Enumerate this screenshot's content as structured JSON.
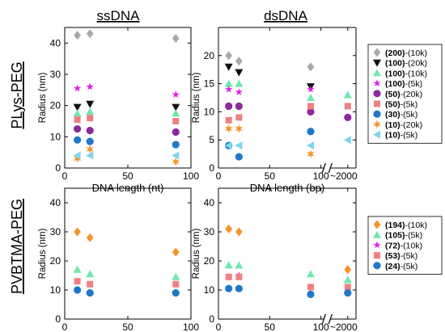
{
  "labels": {
    "col_ss": "ssDNA",
    "col_ds": "dsDNA",
    "row_top": "PLys-PEG",
    "row_bottom": "PVBTMA-PEG",
    "radius_label": "Radius (nm)",
    "xlabel_nt": "DNA length (nt)",
    "xlabel_bp": "DNA length (bp)",
    "break_tick": "2000"
  },
  "legend_top": [
    {
      "bold": "(200)",
      "rest": "-(10k)",
      "color": "#a8a8a8",
      "marker": "diamond"
    },
    {
      "bold": "(100)",
      "rest": "-(20k)",
      "color": "#111111",
      "marker": "triangle-down"
    },
    {
      "bold": "(100)",
      "rest": "-(10k)",
      "color": "#6ee8ae",
      "marker": "triangle-up"
    },
    {
      "bold": "(100)",
      "rest": "-(5k)",
      "color": "#e61ee6",
      "marker": "star"
    },
    {
      "bold": "(50)",
      "rest": "-(20k)",
      "color": "#8b2a9c",
      "marker": "circle"
    },
    {
      "bold": "(50)",
      "rest": "-(5k)",
      "color": "#f08080",
      "marker": "square"
    },
    {
      "bold": "(30)",
      "rest": "-(5k)",
      "color": "#1f78c8",
      "marker": "circle"
    },
    {
      "bold": "(10)",
      "rest": "-(20k)",
      "color": "#f5932a",
      "marker": "asterisk"
    },
    {
      "bold": "(10)",
      "rest": "-(5k)",
      "color": "#7fd4f0",
      "marker": "triangle-left"
    }
  ],
  "legend_bottom": [
    {
      "bold": "(194)",
      "rest": "-(10k)",
      "color": "#f5932a",
      "marker": "diamond"
    },
    {
      "bold": "(105)",
      "rest": "-(5k)",
      "color": "#6ee8ae",
      "marker": "triangle-up"
    },
    {
      "bold": "(72)",
      "rest": "-(10k)",
      "color": "#e61ee6",
      "marker": "star"
    },
    {
      "bold": "(53)",
      "rest": "-(5k)",
      "color": "#f08080",
      "marker": "square"
    },
    {
      "bold": "(24)",
      "rest": "-(5k)",
      "color": "#1f78c8",
      "marker": "circle"
    }
  ],
  "chart_data": [
    {
      "type": "scatter",
      "panel": "top-left",
      "title": "ssDNA",
      "xlabel": "DNA length (nt)",
      "ylabel": "Radius (nm)",
      "xlim": [
        0,
        100
      ],
      "ylim": [
        0,
        45
      ],
      "xticks": [
        0,
        50,
        100
      ],
      "yticks": [
        0,
        10,
        20,
        30,
        40
      ],
      "series": [
        {
          "name": "(200)-(10k)",
          "x": [
            10,
            20,
            88
          ],
          "y": [
            42.5,
            43,
            41.5
          ]
        },
        {
          "name": "(100)-(20k)",
          "x": [
            10,
            20,
            88
          ],
          "y": [
            19.5,
            20.5,
            19.5
          ]
        },
        {
          "name": "(100)-(10k)",
          "x": [
            10,
            20,
            88
          ],
          "y": [
            17.5,
            18,
            17.5
          ]
        },
        {
          "name": "(100)-(5k)",
          "x": [
            10,
            20,
            88
          ],
          "y": [
            25.5,
            26,
            23.5
          ]
        },
        {
          "name": "(50)-(20k)",
          "x": [
            10,
            20,
            88
          ],
          "y": [
            12.5,
            12,
            11.5
          ]
        },
        {
          "name": "(50)-(5k)",
          "x": [
            10,
            20,
            88
          ],
          "y": [
            15.5,
            16,
            15
          ]
        },
        {
          "name": "(30)-(5k)",
          "x": [
            10,
            20,
            88
          ],
          "y": [
            9,
            8.5,
            7.5
          ]
        },
        {
          "name": "(10)-(20k)",
          "x": [
            10,
            20,
            88
          ],
          "y": [
            3,
            6,
            2
          ]
        },
        {
          "name": "(10)-(5k)",
          "x": [
            10,
            20,
            88
          ],
          "y": [
            4,
            4,
            4
          ]
        }
      ]
    },
    {
      "type": "scatter",
      "panel": "top-right",
      "title": "dsDNA",
      "xlabel": "DNA length (bp)",
      "ylabel": "Radius (nm)",
      "xlim": [
        0,
        2000
      ],
      "ylim": [
        0,
        25
      ],
      "xticks": [
        0,
        50,
        100,
        2000
      ],
      "yticks": [
        0,
        5,
        10,
        15,
        20
      ],
      "x_axis_break": [
        100,
        2000
      ],
      "series": [
        {
          "name": "(200)-(10k)",
          "x": [
            10,
            20,
            90
          ],
          "y": [
            20,
            19,
            18
          ]
        },
        {
          "name": "(100)-(20k)",
          "x": [
            10,
            20,
            90
          ],
          "y": [
            18,
            17,
            14.5
          ]
        },
        {
          "name": "(100)-(10k)",
          "x": [
            10,
            20,
            90,
            2000
          ],
          "y": [
            15,
            15,
            12.5,
            13
          ]
        },
        {
          "name": "(100)-(5k)",
          "x": [
            10,
            20,
            90
          ],
          "y": [
            14,
            13.5,
            14
          ]
        },
        {
          "name": "(50)-(20k)",
          "x": [
            10,
            20,
            90,
            2000
          ],
          "y": [
            11,
            11,
            10,
            9
          ]
        },
        {
          "name": "(50)-(5k)",
          "x": [
            10,
            20,
            90,
            2000
          ],
          "y": [
            8.5,
            9,
            11,
            11
          ]
        },
        {
          "name": "(30)-(5k)",
          "x": [
            10,
            20,
            90
          ],
          "y": [
            4,
            2,
            6.5
          ]
        },
        {
          "name": "(10)-(20k)",
          "x": [
            10,
            20,
            90
          ],
          "y": [
            7,
            7,
            2.5
          ]
        },
        {
          "name": "(10)-(5k)",
          "x": [
            10,
            20,
            90,
            2000
          ],
          "y": [
            4,
            4,
            4,
            5
          ]
        }
      ]
    },
    {
      "type": "scatter",
      "panel": "bottom-left",
      "xlabel": "DNA length (nt)",
      "ylabel": "Radius (nm)",
      "xlim": [
        0,
        100
      ],
      "ylim": [
        0,
        45
      ],
      "xticks": [
        0,
        50,
        100
      ],
      "yticks": [
        0,
        10,
        20,
        30,
        40
      ],
      "series": [
        {
          "name": "(194)-(10k)",
          "x": [
            10,
            20,
            88
          ],
          "y": [
            30,
            28,
            23
          ]
        },
        {
          "name": "(105)-(5k)",
          "x": [
            10,
            20,
            88
          ],
          "y": [
            17,
            15.5,
            14.5
          ]
        },
        {
          "name": "(53)-(5k)",
          "x": [
            10,
            20,
            88
          ],
          "y": [
            13,
            12,
            12
          ]
        },
        {
          "name": "(24)-(5k)",
          "x": [
            10,
            20,
            88
          ],
          "y": [
            10,
            9,
            9
          ]
        }
      ]
    },
    {
      "type": "scatter",
      "panel": "bottom-right",
      "xlabel": "DNA length (bp)",
      "ylabel": "Radius (nm)",
      "xlim": [
        0,
        2000
      ],
      "ylim": [
        0,
        45
      ],
      "xticks": [
        0,
        50,
        100,
        2000
      ],
      "yticks": [
        0,
        10,
        20,
        30,
        40
      ],
      "x_axis_break": [
        100,
        2000
      ],
      "series": [
        {
          "name": "(194)-(10k)",
          "x": [
            10,
            20,
            2000
          ],
          "y": [
            31,
            30,
            17
          ]
        },
        {
          "name": "(105)-(5k)",
          "x": [
            10,
            20,
            90,
            2000
          ],
          "y": [
            18.5,
            18.5,
            15.5,
            13.5
          ]
        },
        {
          "name": "(72)-(10k)",
          "x": [
            20
          ],
          "y": [
            15
          ]
        },
        {
          "name": "(53)-(5k)",
          "x": [
            10,
            20,
            90,
            2000
          ],
          "y": [
            14.5,
            14.5,
            11,
            11
          ]
        },
        {
          "name": "(24)-(5k)",
          "x": [
            10,
            20,
            90,
            2000
          ],
          "y": [
            10.5,
            10.5,
            8.5,
            9
          ]
        }
      ]
    }
  ]
}
